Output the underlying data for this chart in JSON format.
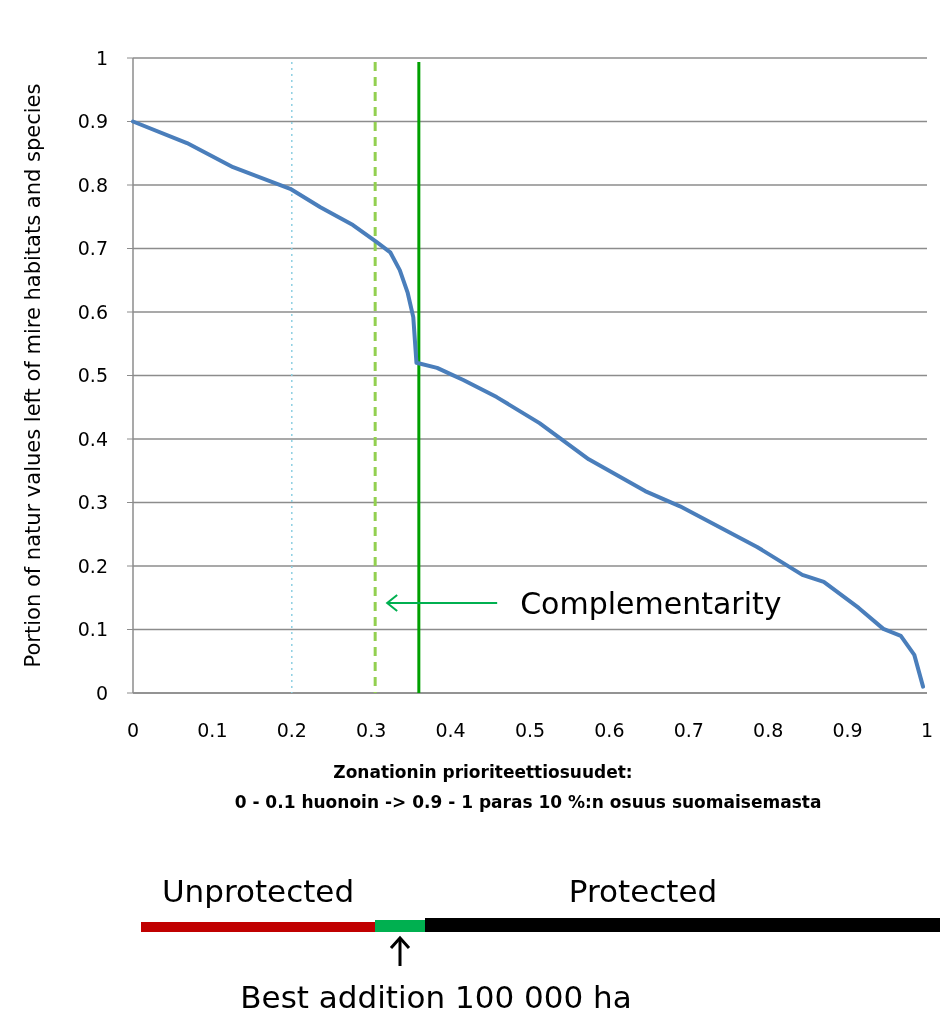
{
  "chart_data": {
    "type": "line",
    "xlabel": "Zonationin prioriteettiosuudet:\n0 - 0.1 huonoin -> 0.9 - 1 paras 10 %:n osuus suomaisemasta",
    "ylabel": "Portion of natur values left of mire habitats and species",
    "x": [
      0,
      0.068,
      0.126,
      0.198,
      0.236,
      0.277,
      0.307,
      0.324,
      0.336,
      0.346,
      0.353,
      0.357,
      0.383,
      0.402,
      0.416,
      0.458,
      0.512,
      0.574,
      0.645,
      0.689,
      0.786,
      0.843,
      0.87,
      0.914,
      0.945,
      0.967,
      0.984,
      0.995
    ],
    "series": [
      {
        "color": "#4a7ebb",
        "values": [
          0.9,
          0.866,
          0.828,
          0.794,
          0.765,
          0.737,
          0.71,
          0.694,
          0.666,
          0.63,
          0.592,
          0.52,
          0.512,
          0.501,
          0.493,
          0.466,
          0.425,
          0.368,
          0.318,
          0.294,
          0.23,
          0.186,
          0.175,
          0.134,
          0.101,
          0.09,
          0.06,
          0.01
        ]
      }
    ],
    "xlim": [
      0,
      1
    ],
    "xticks": [
      0,
      0.1,
      0.2,
      0.3,
      0.4,
      0.5,
      0.6,
      0.7,
      0.8,
      0.9,
      1
    ],
    "ylim": [
      0,
      1
    ],
    "yticks": [
      0,
      0.1,
      0.2,
      0.3,
      0.4,
      0.5,
      0.6,
      0.7,
      0.8,
      0.9,
      1
    ],
    "grid": "y",
    "marker": "none",
    "line_style": "solid",
    "ref_lines": [
      {
        "axis": "x",
        "value": 0.2,
        "color": "#8ecfe2",
        "line_style": "dotted"
      },
      {
        "axis": "x",
        "value": 0.305,
        "color": "#92d050",
        "line_style": "dashed"
      },
      {
        "axis": "x",
        "value": 0.36,
        "color": "#00a000",
        "line_style": "solid"
      }
    ],
    "annotations": [
      "Complementarity",
      "Unprotected",
      "Protected",
      "Best addition 100 000 ha"
    ]
  }
}
